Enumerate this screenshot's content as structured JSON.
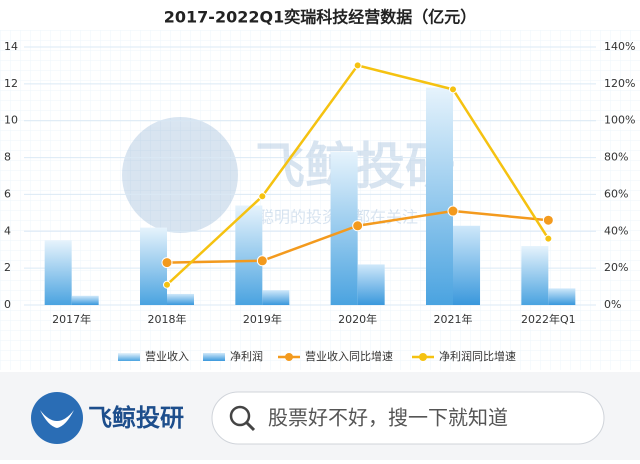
{
  "chart_data": {
    "type": "bar",
    "title": "2017-2022Q1奕瑞科技经营数据（亿元）",
    "categories": [
      "2017年",
      "2018年",
      "2019年",
      "2020年",
      "2021年",
      "2022年Q1"
    ],
    "series": [
      {
        "name": "营业收入",
        "color": "#4aa3e0",
        "type": "bar",
        "values": [
          3.5,
          4.2,
          5.4,
          8.3,
          11.8,
          3.2
        ]
      },
      {
        "name": "净利润",
        "color": "#3a98dc",
        "type": "bar",
        "values": [
          0.5,
          0.6,
          0.8,
          2.2,
          4.3,
          0.9
        ]
      },
      {
        "name": "营业收入同比增速",
        "color": "#f39a1e",
        "type": "line",
        "axis": "y2",
        "values": [
          null,
          23,
          24,
          43,
          51,
          46
        ]
      },
      {
        "name": "净利润同比增速",
        "color": "#f5c211",
        "type": "line",
        "axis": "y2",
        "values": [
          null,
          11,
          59,
          130,
          117,
          36
        ]
      }
    ],
    "ylim": [
      0,
      14
    ],
    "yticks": [
      0,
      2,
      4,
      6,
      8,
      10,
      12,
      14
    ],
    "y2lim": [
      0,
      140
    ],
    "y2ticks": [
      {
        "value": 0,
        "label": "0%"
      },
      {
        "value": 20,
        "label": "20%"
      },
      {
        "value": 40,
        "label": "40%"
      },
      {
        "value": 60,
        "label": "60%"
      },
      {
        "value": 80,
        "label": "80%"
      },
      {
        "value": 100,
        "label": "100%"
      },
      {
        "value": 120,
        "label": "120%"
      },
      {
        "value": 140,
        "label": "140%"
      }
    ],
    "grid": true
  },
  "watermark": {
    "title": "飞鲸投研",
    "slogan": "聪明的投资者都在关注"
  },
  "banner": {
    "brand": "飞鲸投研",
    "search_placeholder": "股票好不好，搜一下就知道"
  }
}
